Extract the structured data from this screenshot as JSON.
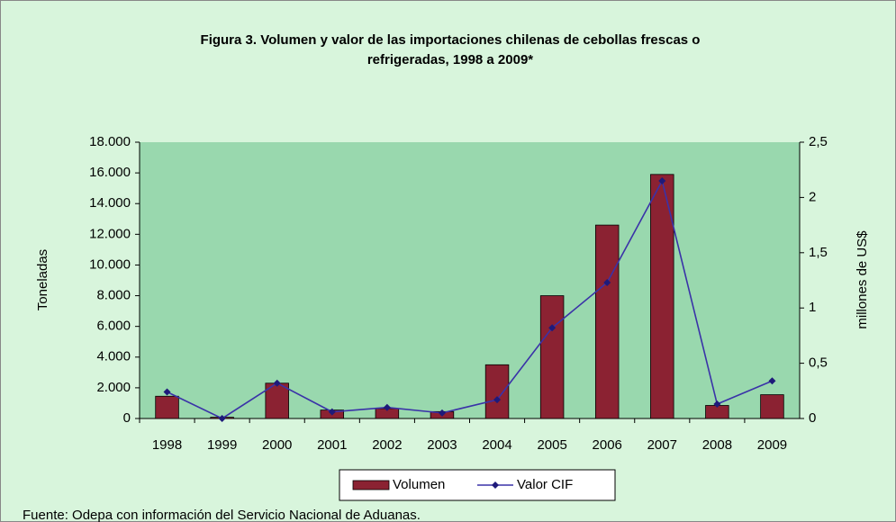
{
  "chart_data": {
    "type": "bar_line",
    "title": "Figura 3. Volumen y valor de las importaciones chilenas de cebollas frescas o refrigeradas, 1998 a 2009*",
    "categories": [
      "1998",
      "1999",
      "2000",
      "2001",
      "2002",
      "2003",
      "2004",
      "2005",
      "2006",
      "2007",
      "2008",
      "2009"
    ],
    "series": [
      {
        "name": "Volumen",
        "type": "bar",
        "color": "#8b2232",
        "values": [
          1450,
          80,
          2300,
          550,
          650,
          450,
          3500,
          8000,
          12600,
          15900,
          850,
          1550
        ]
      },
      {
        "name": "Valor CIF",
        "type": "line",
        "axis": "y2",
        "color": "#3a32a8",
        "values": [
          0.24,
          0.0,
          0.32,
          0.06,
          0.1,
          0.05,
          0.17,
          0.82,
          1.23,
          2.15,
          0.13,
          0.34
        ]
      }
    ],
    "ylabel": "Toneladas",
    "y2label": "millones de US$",
    "ylim": [
      0,
      18000
    ],
    "yticks": [
      0,
      {
        "value": 2000,
        "label": "2.000"
      },
      {
        "value": 4000,
        "label": "4.000"
      },
      {
        "value": 6000,
        "label": "6.000"
      },
      {
        "value": 8000,
        "label": "8.000"
      },
      {
        "value": 10000,
        "label": "10.000"
      },
      {
        "value": 12000,
        "label": "12.000"
      },
      {
        "value": 14000,
        "label": "14.000"
      },
      {
        "value": 16000,
        "label": "16.000"
      },
      {
        "value": 18000,
        "label": "18.000"
      }
    ],
    "y2lim": [
      0,
      2.5
    ],
    "y2ticks": [
      0,
      {
        "value": 0.5,
        "label": "0,5"
      },
      1,
      {
        "value": 1.5,
        "label": "1,5"
      },
      2,
      {
        "value": 2.5,
        "label": "2,5"
      }
    ],
    "legend": "bottom",
    "source": "Fuente: Odepa con información del Servicio Nacional de Aduanas."
  }
}
